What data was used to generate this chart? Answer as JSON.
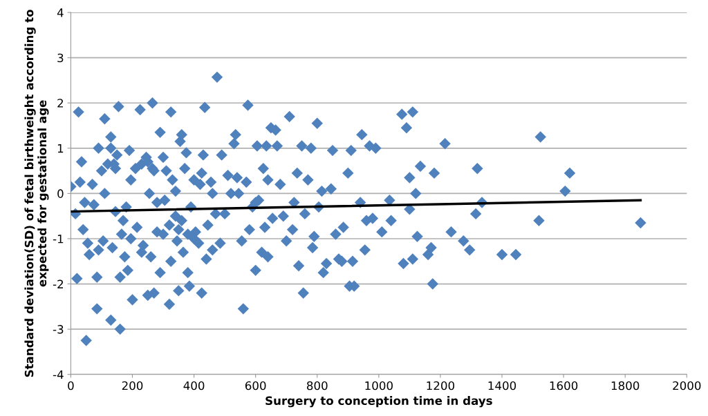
{
  "chart_data": {
    "type": "scatter",
    "xlabel": "Surgery to conception time in days",
    "ylabel": "Standard deviation(SD) of fetal birthweight according to\nexpected for gestational age",
    "xlim": [
      0,
      2000
    ],
    "xticks": [
      0,
      200,
      400,
      600,
      800,
      1000,
      1200,
      1400,
      1600,
      1800,
      2000
    ],
    "ylim": [
      -4,
      4
    ],
    "yticks": [
      -4,
      -3,
      -2,
      -1,
      0,
      1,
      2,
      3,
      4
    ],
    "grid": "y",
    "marker": "diamond",
    "series": [
      {
        "type": "scatter",
        "color": "#4f81bd",
        "x": [
          0,
          15,
          25,
          20,
          30,
          35,
          40,
          45,
          50,
          55,
          60,
          70,
          75,
          85,
          85,
          90,
          90,
          100,
          105,
          110,
          110,
          120,
          130,
          130,
          130,
          135,
          140,
          145,
          145,
          150,
          155,
          160,
          160,
          165,
          170,
          175,
          180,
          185,
          190,
          195,
          195,
          200,
          210,
          215,
          225,
          230,
          235,
          245,
          250,
          255,
          260,
          265,
          265,
          270,
          280,
          290,
          290,
          300,
          305,
          310,
          320,
          325,
          325,
          330,
          340,
          345,
          350,
          355,
          360,
          365,
          370,
          375,
          380,
          385,
          390,
          400,
          405,
          415,
          425,
          425,
          430,
          435,
          440,
          445,
          455,
          460,
          470,
          475,
          485,
          490,
          500,
          510,
          520,
          530,
          535,
          540,
          545,
          555,
          560,
          570,
          575,
          580,
          590,
          600,
          605,
          610,
          620,
          625,
          630,
          635,
          640,
          650,
          655,
          665,
          670,
          680,
          690,
          700,
          710,
          720,
          725,
          735,
          740,
          750,
          755,
          760,
          770,
          780,
          785,
          790,
          800,
          805,
          815,
          820,
          830,
          845,
          850,
          860,
          870,
          880,
          885,
          900,
          905,
          910,
          915,
          920,
          940,
          945,
          955,
          960,
          970,
          980,
          990,
          1010,
          1035,
          1040,
          1075,
          1080,
          1090,
          1100,
          1100,
          1110,
          1110,
          1120,
          1125,
          1135,
          1160,
          1170,
          1175,
          1180,
          1215,
          1235,
          1275,
          1295,
          1315,
          1320,
          1335,
          1400,
          1445,
          1520,
          1525,
          1605,
          1620,
          1850,
          250,
          270,
          300,
          320,
          350,
          380,
          400,
          420,
          360,
          280,
          230,
          340,
          460,
          600,
          640
        ],
        "values": [
          0.15,
          -0.45,
          1.8,
          -1.88,
          0.25,
          0.7,
          -0.8,
          -0.2,
          -3.25,
          -1.1,
          -1.35,
          0.2,
          -0.25,
          -1.85,
          -2.55,
          1.0,
          -1.25,
          0.5,
          -1.05,
          1.65,
          0.0,
          0.65,
          1.25,
          1.0,
          -2.8,
          -1.2,
          0.65,
          0.55,
          -0.4,
          0.85,
          1.92,
          -1.85,
          -3.0,
          -0.9,
          -0.6,
          -1.4,
          -0.3,
          -1.7,
          0.95,
          0.3,
          -1.0,
          -2.35,
          0.55,
          -0.75,
          1.85,
          0.65,
          -1.15,
          0.8,
          -2.25,
          0.0,
          -1.4,
          2.0,
          0.55,
          -2.2,
          -0.85,
          1.35,
          -1.75,
          0.8,
          -0.15,
          0.5,
          -2.45,
          -1.5,
          1.8,
          0.3,
          -0.5,
          -1.05,
          -2.15,
          1.15,
          1.3,
          -1.3,
          0.55,
          0.9,
          -1.75,
          -2.05,
          -0.3,
          0.3,
          -0.85,
          -1.1,
          0.45,
          -2.2,
          0.85,
          1.9,
          -1.45,
          -0.7,
          0.25,
          -1.25,
          -0.45,
          2.57,
          -1.1,
          0.85,
          -0.45,
          0.4,
          0.0,
          1.1,
          1.3,
          0.35,
          0.0,
          -1.05,
          -2.55,
          0.25,
          1.95,
          -0.8,
          -0.3,
          -1.7,
          1.05,
          -0.15,
          -1.3,
          0.55,
          -0.75,
          1.05,
          -1.4,
          1.45,
          -0.55,
          1.4,
          1.05,
          0.2,
          -0.5,
          -1.05,
          1.7,
          -0.8,
          -0.2,
          0.45,
          -1.6,
          1.05,
          -2.2,
          -0.45,
          0.3,
          1.0,
          -1.2,
          -0.95,
          1.55,
          -0.3,
          0.05,
          -1.75,
          -1.55,
          0.1,
          0.95,
          -0.9,
          -1.45,
          -1.5,
          -0.75,
          0.45,
          -2.05,
          0.95,
          -1.5,
          -2.05,
          -0.2,
          1.3,
          -1.25,
          -0.6,
          1.05,
          -0.55,
          1.0,
          -0.85,
          -0.15,
          -0.6,
          1.75,
          -1.55,
          1.45,
          0.35,
          -0.35,
          1.8,
          -1.45,
          0.0,
          -0.95,
          0.6,
          -1.35,
          -1.2,
          -2.0,
          0.45,
          1.1,
          -0.85,
          -1.05,
          -1.25,
          -0.45,
          0.55,
          -0.2,
          -1.35,
          -1.35,
          -0.6,
          1.25,
          0.05,
          0.45,
          -0.65,
          0.7,
          0.5,
          -0.9,
          -0.7,
          -0.8,
          -0.9,
          -1.0,
          0.2,
          -0.6,
          -0.2,
          -1.3,
          0.05,
          0.0,
          -0.2,
          0.3
        ]
      },
      {
        "type": "line",
        "color": "#000000",
        "marker": "none",
        "x": [
          0,
          1850
        ],
        "values": [
          -0.4,
          -0.15
        ]
      }
    ]
  }
}
